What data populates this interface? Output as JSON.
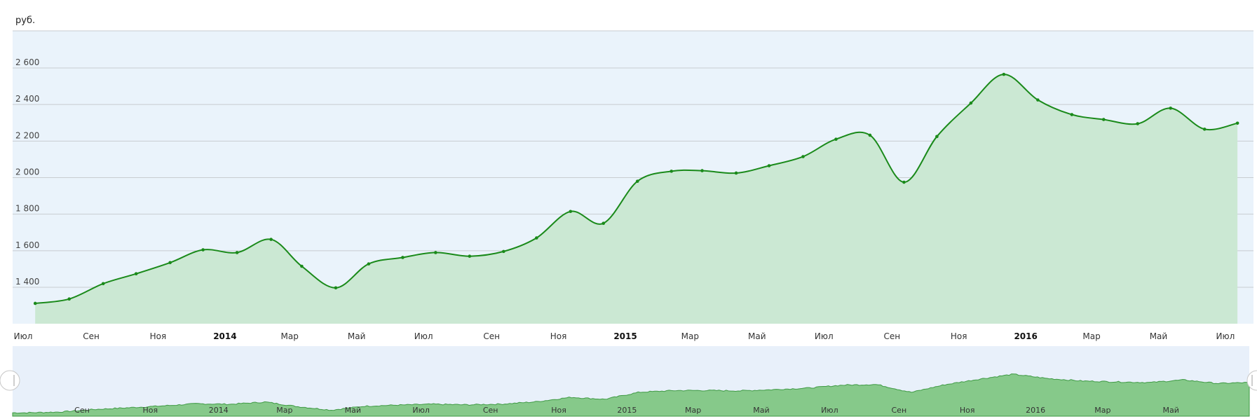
{
  "unit_label": "руб.",
  "colors": {
    "plot_bg": "#eaf3fb",
    "grid": "#c8ccd0",
    "line": "#1a8a1a",
    "area": "#cbe8d3",
    "navigator_bg": "#e8f0fa",
    "navigator_area": "#86c98a",
    "navigator_line": "#3f9a44"
  },
  "chart_data": {
    "type": "area",
    "title": "",
    "xlabel": "",
    "ylabel": "руб.",
    "ylim": [
      1200,
      2800
    ],
    "yticks": [
      1400,
      1600,
      1800,
      2000,
      2200,
      2400,
      2600
    ],
    "ytick_labels": [
      "1 400",
      "1 600",
      "1 800",
      "2 000",
      "2 200",
      "2 400",
      "2 600"
    ],
    "xlim": [
      "2013-07-01",
      "2016-07-10"
    ],
    "xticks": [
      {
        "date": "2013-07-01",
        "label": "Июл",
        "bold": false
      },
      {
        "date": "2013-09-01",
        "label": "Сен",
        "bold": false
      },
      {
        "date": "2013-11-01",
        "label": "Ноя",
        "bold": false
      },
      {
        "date": "2014-01-01",
        "label": "2014",
        "bold": true
      },
      {
        "date": "2014-03-01",
        "label": "Мар",
        "bold": false
      },
      {
        "date": "2014-05-01",
        "label": "Май",
        "bold": false
      },
      {
        "date": "2014-07-01",
        "label": "Июл",
        "bold": false
      },
      {
        "date": "2014-09-01",
        "label": "Сен",
        "bold": false
      },
      {
        "date": "2014-11-01",
        "label": "Ноя",
        "bold": false
      },
      {
        "date": "2015-01-01",
        "label": "2015",
        "bold": true
      },
      {
        "date": "2015-03-01",
        "label": "Мар",
        "bold": false
      },
      {
        "date": "2015-05-01",
        "label": "Май",
        "bold": false
      },
      {
        "date": "2015-07-01",
        "label": "Июл",
        "bold": false
      },
      {
        "date": "2015-09-01",
        "label": "Сен",
        "bold": false
      },
      {
        "date": "2015-11-01",
        "label": "Ноя",
        "bold": false
      },
      {
        "date": "2016-01-01",
        "label": "2016",
        "bold": true
      },
      {
        "date": "2016-03-01",
        "label": "Мар",
        "bold": false
      },
      {
        "date": "2016-05-01",
        "label": "Май",
        "bold": false
      },
      {
        "date": "2016-07-01",
        "label": "Июл",
        "bold": false
      }
    ],
    "series": [
      {
        "points": [
          {
            "x": "2013-07-12",
            "y": 1312
          },
          {
            "x": "2013-08-12",
            "y": 1336
          },
          {
            "x": "2013-09-12",
            "y": 1420
          },
          {
            "x": "2013-10-12",
            "y": 1474
          },
          {
            "x": "2013-11-12",
            "y": 1535
          },
          {
            "x": "2013-12-12",
            "y": 1605
          },
          {
            "x": "2014-01-12",
            "y": 1590
          },
          {
            "x": "2014-02-12",
            "y": 1662
          },
          {
            "x": "2014-03-12",
            "y": 1515
          },
          {
            "x": "2014-04-12",
            "y": 1397
          },
          {
            "x": "2014-05-12",
            "y": 1528
          },
          {
            "x": "2014-06-12",
            "y": 1563
          },
          {
            "x": "2014-07-12",
            "y": 1590
          },
          {
            "x": "2014-08-12",
            "y": 1570
          },
          {
            "x": "2014-09-12",
            "y": 1596
          },
          {
            "x": "2014-10-12",
            "y": 1670
          },
          {
            "x": "2014-11-12",
            "y": 1815
          },
          {
            "x": "2014-12-12",
            "y": 1750
          },
          {
            "x": "2015-01-12",
            "y": 1980
          },
          {
            "x": "2015-02-12",
            "y": 2035
          },
          {
            "x": "2015-03-12",
            "y": 2038
          },
          {
            "x": "2015-04-12",
            "y": 2025
          },
          {
            "x": "2015-05-12",
            "y": 2065
          },
          {
            "x": "2015-06-12",
            "y": 2115
          },
          {
            "x": "2015-07-12",
            "y": 2210
          },
          {
            "x": "2015-08-12",
            "y": 2232
          },
          {
            "x": "2015-09-12",
            "y": 1975
          },
          {
            "x": "2015-10-12",
            "y": 2225
          },
          {
            "x": "2015-11-12",
            "y": 2408
          },
          {
            "x": "2015-12-12",
            "y": 2565
          },
          {
            "x": "2016-01-12",
            "y": 2425
          },
          {
            "x": "2016-02-12",
            "y": 2345
          },
          {
            "x": "2016-03-12",
            "y": 2318
          },
          {
            "x": "2016-04-12",
            "y": 2295
          },
          {
            "x": "2016-05-12",
            "y": 2380
          },
          {
            "x": "2016-06-12",
            "y": 2265
          },
          {
            "x": "2016-07-12",
            "y": 2298
          }
        ]
      }
    ],
    "grid": true,
    "legend": "none",
    "navigator": {
      "xticks": [
        {
          "date": "2013-09-01",
          "label": "Сен"
        },
        {
          "date": "2013-11-01",
          "label": "Ноя"
        },
        {
          "date": "2014-01-01",
          "label": "2014"
        },
        {
          "date": "2014-03-01",
          "label": "Мар"
        },
        {
          "date": "2014-05-01",
          "label": "Май"
        },
        {
          "date": "2014-07-01",
          "label": "Июл"
        },
        {
          "date": "2014-09-01",
          "label": "Сен"
        },
        {
          "date": "2014-11-01",
          "label": "Ноя"
        },
        {
          "date": "2015-01-01",
          "label": "2015"
        },
        {
          "date": "2015-03-01",
          "label": "Мар"
        },
        {
          "date": "2015-05-01",
          "label": "Май"
        },
        {
          "date": "2015-07-01",
          "label": "Июл"
        },
        {
          "date": "2015-09-01",
          "label": "Сен"
        },
        {
          "date": "2015-11-01",
          "label": "Ноя"
        },
        {
          "date": "2016-01-01",
          "label": "2016"
        },
        {
          "date": "2016-03-01",
          "label": "Мар"
        },
        {
          "date": "2016-05-01",
          "label": "Май"
        }
      ]
    }
  }
}
